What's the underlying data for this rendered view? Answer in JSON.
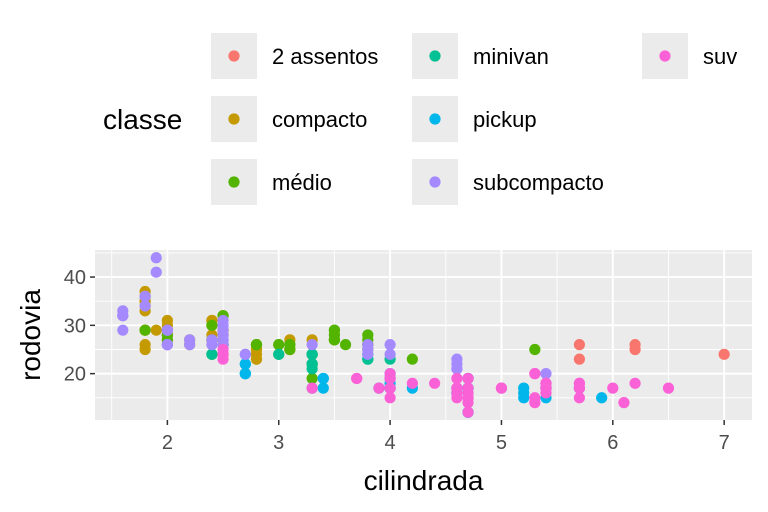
{
  "chart_data": {
    "type": "scatter",
    "xlabel": "cilindrada",
    "ylabel": "rodovia",
    "xlim": [
      1.35,
      7.25
    ],
    "ylim": [
      10.4,
      45.6
    ],
    "xticks": [
      2,
      3,
      4,
      5,
      6,
      7
    ],
    "yticks": [
      20,
      30,
      40
    ],
    "grid": true,
    "legend": {
      "title": "classe",
      "position": "top",
      "columns": 3
    },
    "series": [
      {
        "name": "2 assentos",
        "color": "#F8766D",
        "points": [
          [
            5.7,
            26
          ],
          [
            5.7,
            23
          ],
          [
            6.2,
            26
          ],
          [
            6.2,
            25
          ],
          [
            7.0,
            24
          ]
        ]
      },
      {
        "name": "compacto",
        "color": "#C49A00",
        "points": [
          [
            1.8,
            29
          ],
          [
            1.8,
            29
          ],
          [
            2.0,
            31
          ],
          [
            2.0,
            30
          ],
          [
            2.8,
            26
          ],
          [
            2.8,
            26
          ],
          [
            3.1,
            27
          ],
          [
            1.8,
            26
          ],
          [
            1.8,
            25
          ],
          [
            2.0,
            28
          ],
          [
            2.0,
            27
          ],
          [
            2.8,
            25
          ],
          [
            2.8,
            25
          ],
          [
            3.1,
            25
          ],
          [
            3.1,
            25
          ],
          [
            2.2,
            26
          ],
          [
            2.2,
            27
          ],
          [
            2.4,
            31
          ],
          [
            2.4,
            31
          ],
          [
            3.0,
            26
          ],
          [
            3.3,
            27
          ],
          [
            1.8,
            35
          ],
          [
            1.8,
            37
          ],
          [
            1.8,
            35
          ],
          [
            2.0,
            29
          ],
          [
            2.8,
            23
          ],
          [
            1.9,
            29
          ],
          [
            2.0,
            29
          ],
          [
            2.0,
            28
          ],
          [
            2.0,
            29
          ],
          [
            2.5,
            29
          ],
          [
            2.5,
            29
          ],
          [
            2.4,
            27
          ],
          [
            2.5,
            24
          ],
          [
            2.8,
            23
          ],
          [
            2.4,
            28
          ],
          [
            2.5,
            26
          ],
          [
            2.5,
            29
          ],
          [
            1.8,
            36
          ],
          [
            1.8,
            34
          ],
          [
            2.0,
            29
          ],
          [
            2.0,
            26
          ],
          [
            2.8,
            24
          ],
          [
            1.8,
            33
          ],
          [
            2.4,
            30
          ]
        ]
      },
      {
        "name": "médio",
        "color": "#53B400",
        "points": [
          [
            2.8,
            26
          ],
          [
            3.1,
            25
          ],
          [
            4.2,
            23
          ],
          [
            2.4,
            27
          ],
          [
            2.4,
            30
          ],
          [
            3.1,
            26
          ],
          [
            3.5,
            29
          ],
          [
            3.6,
            26
          ],
          [
            2.4,
            24
          ],
          [
            3.0,
            24
          ],
          [
            3.3,
            22
          ],
          [
            3.3,
            24
          ],
          [
            3.3,
            24
          ],
          [
            3.3,
            22
          ],
          [
            3.3,
            19
          ],
          [
            3.8,
            26
          ],
          [
            3.8,
            26
          ],
          [
            3.8,
            28
          ],
          [
            5.3,
            25
          ],
          [
            2.5,
            32
          ],
          [
            2.5,
            32
          ],
          [
            2.5,
            26
          ],
          [
            3.5,
            29
          ],
          [
            3.5,
            27
          ],
          [
            3.5,
            27
          ],
          [
            1.8,
            29
          ],
          [
            2.0,
            28
          ],
          [
            2.0,
            27
          ],
          [
            2.8,
            26
          ],
          [
            3.1,
            26
          ],
          [
            2.0,
            29
          ],
          [
            2.5,
            26
          ],
          [
            3.0,
            26
          ],
          [
            3.5,
            27
          ],
          [
            3.5,
            28
          ],
          [
            3.8,
            27
          ],
          [
            3.8,
            25
          ]
        ]
      },
      {
        "name": "minivan",
        "color": "#00C094",
        "points": [
          [
            2.4,
            24
          ],
          [
            3.0,
            24
          ],
          [
            3.3,
            22
          ],
          [
            3.3,
            24
          ],
          [
            3.3,
            24
          ],
          [
            3.3,
            17
          ],
          [
            3.3,
            22
          ],
          [
            3.3,
            21
          ],
          [
            3.8,
            23
          ],
          [
            3.8,
            23
          ],
          [
            3.8,
            24
          ],
          [
            4.0,
            23
          ]
        ]
      },
      {
        "name": "pickup",
        "color": "#00B6EB",
        "points": [
          [
            2.7,
            20
          ],
          [
            2.7,
            20
          ],
          [
            2.7,
            22
          ],
          [
            3.4,
            17
          ],
          [
            3.4,
            19
          ],
          [
            4.0,
            18
          ],
          [
            4.0,
            17
          ],
          [
            4.7,
            19
          ],
          [
            4.7,
            19
          ],
          [
            4.7,
            12
          ],
          [
            5.2,
            17
          ],
          [
            5.2,
            15
          ],
          [
            5.7,
            17
          ],
          [
            5.9,
            15
          ],
          [
            4.0,
            20
          ],
          [
            4.2,
            17
          ],
          [
            4.6,
            17
          ],
          [
            4.6,
            16
          ],
          [
            5.4,
            17
          ],
          [
            5.4,
            15
          ],
          [
            3.9,
            17
          ],
          [
            4.7,
            12
          ],
          [
            4.7,
            17
          ],
          [
            2.7,
            22
          ],
          [
            2.7,
            20
          ],
          [
            4.0,
            19
          ],
          [
            4.0,
            19
          ],
          [
            4.6,
            16
          ],
          [
            5.4,
            17
          ],
          [
            5.2,
            16
          ],
          [
            3.4,
            19
          ],
          [
            4.0,
            17
          ],
          [
            4.7,
            17
          ]
        ]
      },
      {
        "name": "subcompacto",
        "color": "#A58AFF",
        "points": [
          [
            3.8,
            26
          ],
          [
            3.8,
            25
          ],
          [
            4.0,
            26
          ],
          [
            4.0,
            24
          ],
          [
            4.6,
            21
          ],
          [
            5.4,
            20
          ],
          [
            1.6,
            33
          ],
          [
            1.6,
            32
          ],
          [
            1.6,
            32
          ],
          [
            1.6,
            29
          ],
          [
            1.6,
            32
          ],
          [
            1.8,
            34
          ],
          [
            1.8,
            36
          ],
          [
            1.8,
            36
          ],
          [
            2.0,
            29
          ],
          [
            2.4,
            26
          ],
          [
            2.4,
            27
          ],
          [
            2.5,
            30
          ],
          [
            2.5,
            31
          ],
          [
            2.5,
            26
          ],
          [
            3.3,
            26
          ],
          [
            2.0,
            26
          ],
          [
            2.0,
            26
          ],
          [
            2.0,
            26
          ],
          [
            2.5,
            26
          ],
          [
            2.5,
            28
          ],
          [
            2.5,
            27
          ],
          [
            2.5,
            29
          ],
          [
            2.2,
            26
          ],
          [
            2.2,
            27
          ],
          [
            2.5,
            28
          ],
          [
            2.5,
            27
          ],
          [
            1.9,
            44
          ],
          [
            1.9,
            41
          ],
          [
            2.0,
            29
          ],
          [
            2.0,
            29
          ],
          [
            2.7,
            24
          ],
          [
            2.7,
            24
          ],
          [
            3.8,
            24
          ],
          [
            4.6,
            23
          ],
          [
            4.6,
            22
          ],
          [
            4.6,
            21
          ]
        ]
      },
      {
        "name": "suv",
        "color": "#FB61D7",
        "points": [
          [
            5.3,
            20
          ],
          [
            5.3,
            15
          ],
          [
            5.3,
            20
          ],
          [
            5.7,
            17
          ],
          [
            6.0,
            17
          ],
          [
            5.7,
            17
          ],
          [
            5.7,
            15
          ],
          [
            6.2,
            18
          ],
          [
            6.5,
            17
          ],
          [
            4.0,
            17
          ],
          [
            4.0,
            19
          ],
          [
            4.6,
            17
          ],
          [
            5.0,
            17
          ],
          [
            4.2,
            18
          ],
          [
            4.4,
            18
          ],
          [
            4.6,
            19
          ],
          [
            5.4,
            17
          ],
          [
            5.4,
            18
          ],
          [
            4.7,
            19
          ],
          [
            4.7,
            19
          ],
          [
            4.7,
            14
          ],
          [
            4.7,
            15
          ],
          [
            3.7,
            19
          ],
          [
            4.7,
            17
          ],
          [
            4.7,
            15
          ],
          [
            5.7,
            18
          ],
          [
            6.1,
            14
          ],
          [
            4.0,
            15
          ],
          [
            4.6,
            17
          ],
          [
            5.0,
            17
          ],
          [
            4.0,
            19
          ],
          [
            4.0,
            20
          ],
          [
            4.0,
            17
          ],
          [
            4.6,
            15
          ],
          [
            5.4,
            16
          ],
          [
            5.4,
            18
          ],
          [
            5.4,
            17
          ],
          [
            2.5,
            25
          ],
          [
            2.5,
            23
          ],
          [
            3.3,
            17
          ],
          [
            3.7,
            19
          ],
          [
            3.9,
            17
          ],
          [
            4.7,
            16
          ],
          [
            4.7,
            12
          ],
          [
            5.7,
            18
          ],
          [
            2.5,
            24
          ],
          [
            4.6,
            16
          ],
          [
            5.3,
            14
          ],
          [
            5.4,
            17
          ],
          [
            5.4,
            18
          ],
          [
            5.4,
            17
          ]
        ]
      }
    ]
  }
}
